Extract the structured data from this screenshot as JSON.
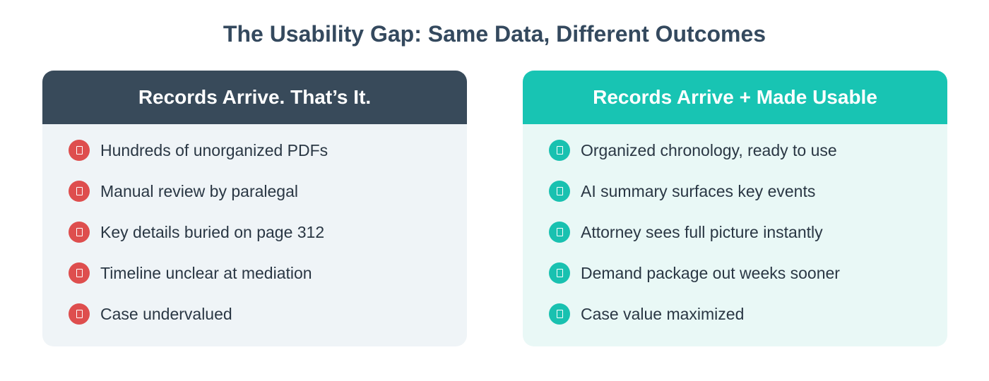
{
  "title": "The Usability Gap: Same Data, Different Outcomes",
  "colors": {
    "left_header": "#384a5a",
    "left_bg": "#eff4f7",
    "left_marker": "#de4e4e",
    "right_header": "#18c4b3",
    "right_bg": "#e9f8f6",
    "right_marker": "#19c1b0"
  },
  "left": {
    "heading": "Records Arrive. That’s It.",
    "icon": "missing-glyph-box",
    "items": [
      "Hundreds of unorganized PDFs",
      "Manual review by paralegal",
      "Key details buried on page 312",
      "Timeline unclear at mediation",
      "Case undervalued"
    ]
  },
  "right": {
    "heading": "Records Arrive + Made Usable",
    "icon": "missing-glyph-box",
    "items": [
      "Organized chronology, ready to use",
      "AI summary surfaces key events",
      "Attorney sees full picture instantly",
      "Demand package out weeks sooner",
      "Case value maximized"
    ]
  }
}
